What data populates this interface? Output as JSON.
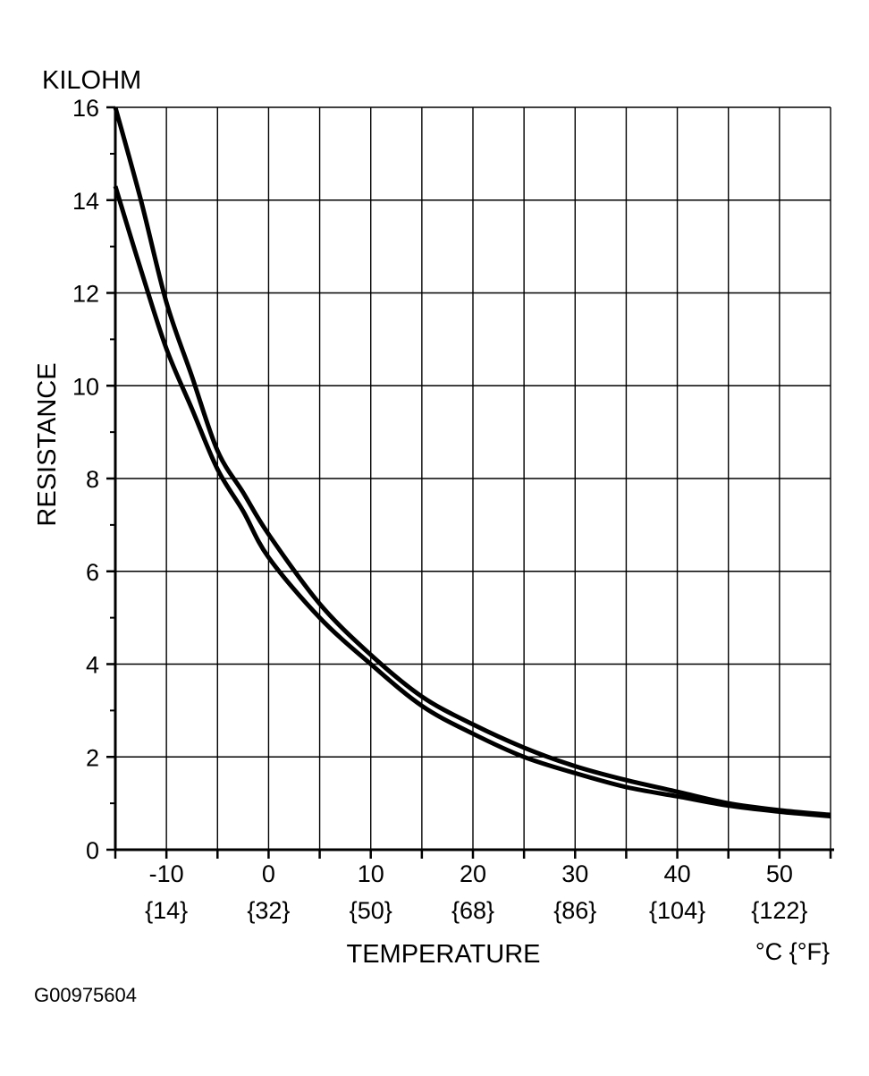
{
  "chart_data": {
    "type": "line",
    "y_unit_label": "KILOHM",
    "ylabel": "RESISTANCE",
    "xlabel": "TEMPERATURE",
    "x_unit_label": "°C {°F}",
    "figure_id": "G00975604",
    "xlim": [
      -15,
      55
    ],
    "ylim": [
      0,
      16
    ],
    "grid": true,
    "x_gridlines": [
      -15,
      -10,
      -5,
      0,
      5,
      10,
      15,
      20,
      25,
      30,
      35,
      40,
      45,
      50,
      55
    ],
    "y_gridlines": [
      0,
      2,
      4,
      6,
      8,
      10,
      12,
      14,
      16
    ],
    "y_minor_ticks": [
      1,
      3,
      5,
      7,
      9,
      11,
      13,
      15
    ],
    "y_ticks": [
      {
        "value": 0,
        "label": "0"
      },
      {
        "value": 2,
        "label": "2"
      },
      {
        "value": 4,
        "label": "4"
      },
      {
        "value": 6,
        "label": "6"
      },
      {
        "value": 8,
        "label": "8"
      },
      {
        "value": 10,
        "label": "10"
      },
      {
        "value": 12,
        "label": "12"
      },
      {
        "value": 14,
        "label": "14"
      },
      {
        "value": 16,
        "label": "16"
      }
    ],
    "x_ticks": [
      {
        "value": -10,
        "label": "-10",
        "sublabel": "{14}"
      },
      {
        "value": 0,
        "label": "0",
        "sublabel": "{32}"
      },
      {
        "value": 10,
        "label": "10",
        "sublabel": "{50}"
      },
      {
        "value": 20,
        "label": "20",
        "sublabel": "{68}"
      },
      {
        "value": 30,
        "label": "30",
        "sublabel": "{86}"
      },
      {
        "value": 40,
        "label": "40",
        "sublabel": "{104}"
      },
      {
        "value": 50,
        "label": "50",
        "sublabel": "{122}"
      }
    ],
    "series": [
      {
        "x": [
          -15,
          -12.5,
          -10,
          -7.5,
          -5,
          -2.5,
          0,
          5,
          10,
          15,
          20,
          25,
          30,
          35,
          40,
          45,
          50,
          55
        ],
        "y": [
          16.0,
          14.0,
          11.8,
          10.2,
          8.6,
          7.7,
          6.8,
          5.3,
          4.2,
          3.3,
          2.7,
          2.2,
          1.8,
          1.5,
          1.25,
          1.0,
          0.85,
          0.75
        ]
      },
      {
        "x": [
          -15,
          -12.5,
          -10,
          -7.5,
          -5,
          -2.5,
          0,
          5,
          10,
          15,
          20,
          25,
          30,
          35,
          40,
          45,
          50,
          55
        ],
        "y": [
          14.3,
          12.5,
          10.8,
          9.5,
          8.2,
          7.3,
          6.3,
          5.0,
          4.0,
          3.1,
          2.5,
          2.0,
          1.65,
          1.35,
          1.15,
          0.95,
          0.82,
          0.72
        ]
      }
    ]
  }
}
